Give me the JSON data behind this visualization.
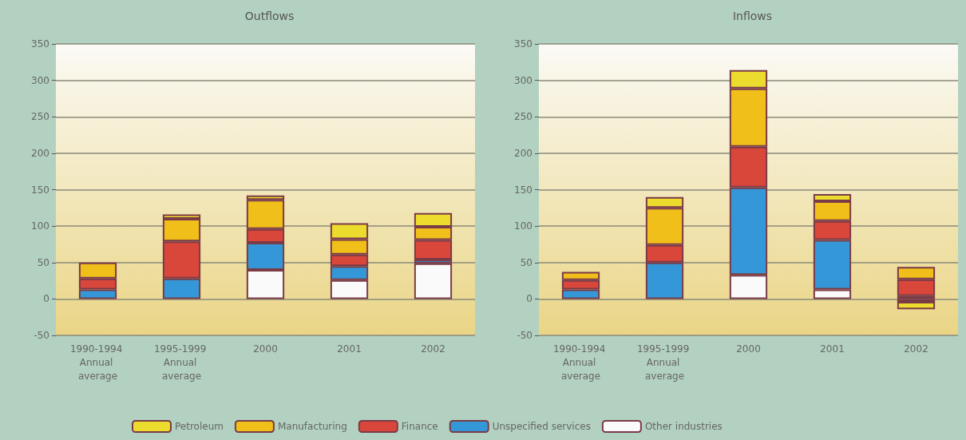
{
  "chart_data": [
    {
      "type": "bar",
      "title": "Outflows",
      "stacked": true,
      "grid": "y",
      "legend": "bottom",
      "categories": [
        "1990-1994 Annual average",
        "1995-1999 Annual average",
        "2000",
        "2001",
        "2002"
      ],
      "ylim": [
        -50,
        350
      ],
      "yticks": [
        -50,
        0,
        50,
        100,
        150,
        200,
        250,
        300,
        350
      ],
      "series": [
        {
          "name": "Other industries",
          "color": "#fafafa",
          "values": [
            null,
            null,
            40,
            26,
            49
          ]
        },
        {
          "name": "Unspecified services",
          "color": "#3498d8",
          "values": [
            13,
            28,
            37,
            19,
            5
          ]
        },
        {
          "name": "Finance",
          "color": "#d9463a",
          "values": [
            15,
            51,
            19,
            16,
            27
          ]
        },
        {
          "name": "Manufacturing",
          "color": "#f0bf1a",
          "values": [
            22,
            31,
            40,
            21,
            18
          ]
        },
        {
          "name": "Petroleum",
          "color": "#ebdc2e",
          "values": [
            null,
            6,
            6,
            22,
            19
          ]
        }
      ]
    },
    {
      "type": "bar",
      "title": "Inflows",
      "stacked": true,
      "grid": "y",
      "categories": [
        "1990-1994 Annual average",
        "1995-1999 Annual average",
        "2000",
        "2001",
        "2002"
      ],
      "ylim": [
        -50,
        350
      ],
      "yticks": [
        -50,
        0,
        50,
        100,
        150,
        200,
        250,
        300,
        350
      ],
      "series": [
        {
          "color": "#fafafa",
          "values": [
            null,
            null,
            33,
            13,
            4
          ]
        },
        {
          "color": "#3498d8",
          "values": [
            13,
            50,
            120,
            68,
            -4
          ]
        },
        {
          "color": "#d9463a",
          "values": [
            13,
            24,
            56,
            26,
            23
          ]
        },
        {
          "color": "#f0bf1a",
          "values": [
            11,
            51,
            80,
            27,
            17
          ]
        },
        {
          "color": "#ebdc2e",
          "values": [
            null,
            15,
            25,
            10,
            -10
          ]
        }
      ]
    }
  ]
}
